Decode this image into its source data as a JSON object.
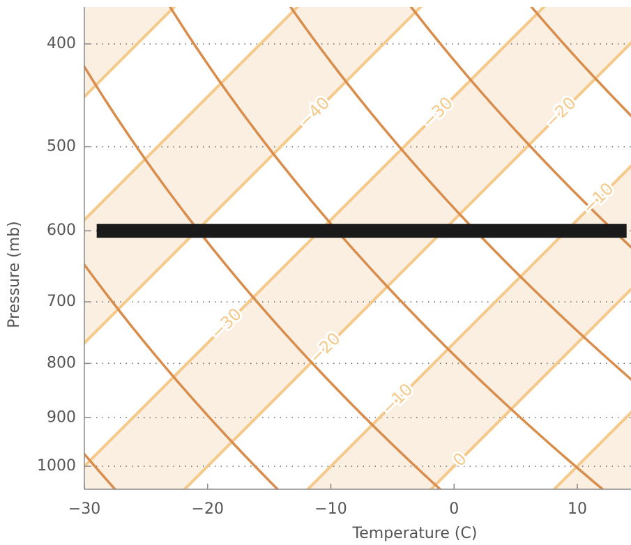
{
  "chart_data": {
    "type": "line",
    "title": "",
    "xlabel": "Temperature (C)",
    "ylabel": "Pressure (mb)",
    "y_scale": "log",
    "y_inverted": true,
    "xlim": [
      -30,
      14
    ],
    "ylim": [
      1035,
      365
    ],
    "grid": "dotted horizontal lines at labelled pressures",
    "x_ticks": [
      -30,
      -20,
      -10,
      0,
      10
    ],
    "x_tick_labels": [
      "−30",
      "−20",
      "−10",
      "0",
      "10"
    ],
    "y_ticks": [
      400,
      500,
      600,
      700,
      800,
      900,
      1000
    ],
    "y_tick_labels": [
      "400",
      "500",
      "600",
      "700",
      "800",
      "900",
      "1000"
    ],
    "isotherm_labels": [
      {
        "text": "−40",
        "value": -40
      },
      {
        "text": "−30",
        "value": -30
      },
      {
        "text": "−20",
        "value": -20
      },
      {
        "text": "−10",
        "value": -10
      },
      {
        "text": "0",
        "value": 0
      },
      {
        "text": "−30",
        "value": -30
      },
      {
        "text": "−20",
        "value": -20
      },
      {
        "text": "−10",
        "value": -10
      },
      {
        "text": "0",
        "value": 0
      }
    ],
    "highlight_line": {
      "pressure": 600,
      "x_range": [
        -29,
        14
      ],
      "color": "#1a1a1a"
    },
    "colors": {
      "isotherm": "#f4c98a",
      "isotherm_band": "#fbefe2",
      "dry_adiabat": "#d98d4d",
      "axis": "#888888",
      "text": "#555555"
    }
  }
}
